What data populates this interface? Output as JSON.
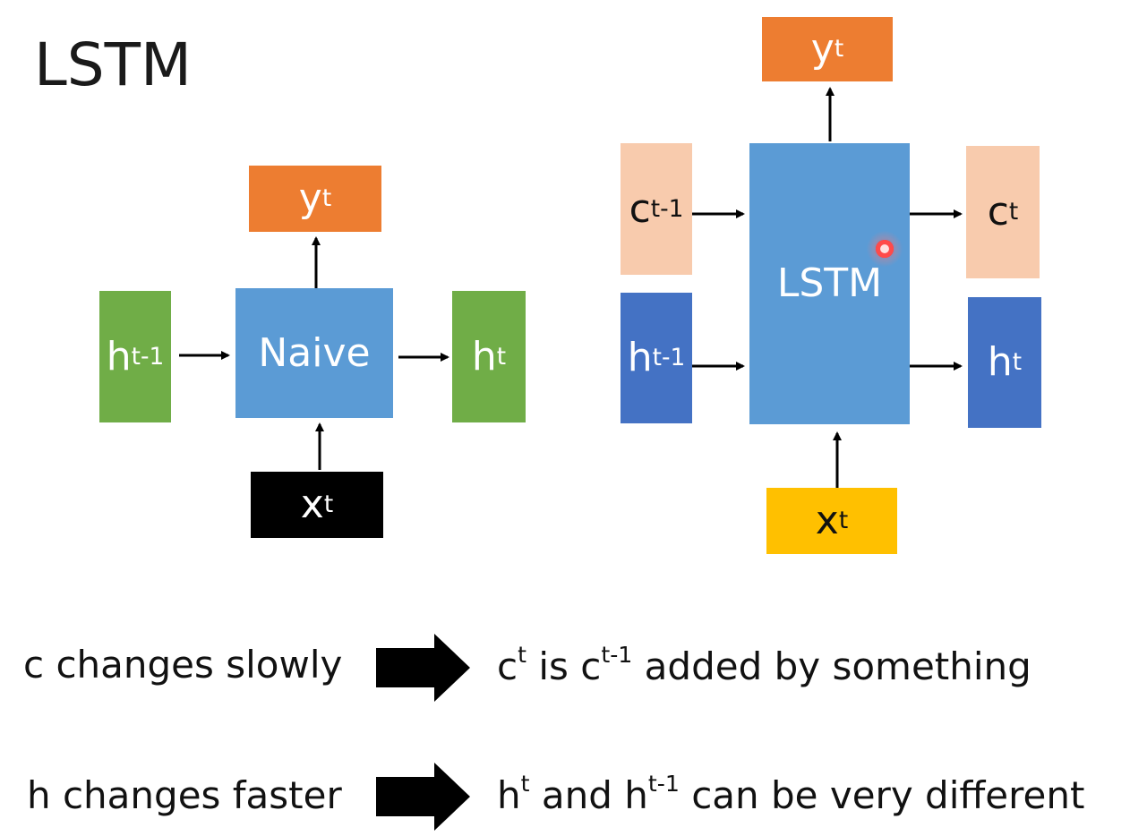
{
  "title": "LSTM",
  "naive": {
    "y_base": "y",
    "y_sup": "t",
    "h_prev_base": "h",
    "h_prev_sup": "t-1",
    "cell": "Naive",
    "h_next_base": "h",
    "h_next_sup": "t",
    "x_base": "x",
    "x_sup": "t"
  },
  "lstm": {
    "y_base": "y",
    "y_sup": "t",
    "c_prev_base": "c",
    "c_prev_sup": "t-1",
    "h_prev_base": "h",
    "h_prev_sup": "t-1",
    "cell": "LSTM",
    "c_next_base": "c",
    "c_next_sup": "t",
    "h_next_base": "h",
    "h_next_sup": "t",
    "x_base": "x",
    "x_sup": "t"
  },
  "statements": {
    "c_left": "c changes slowly",
    "c_right": {
      "p1": "c",
      "s1": "t",
      "p2": " is c",
      "s2": "t-1",
      "p3": " added by something"
    },
    "h_left": "h changes faster",
    "h_right": {
      "p1": "h",
      "s1": "t",
      "p2": " and h",
      "s2": "t-1",
      "p3": " can be very different"
    }
  },
  "colors": {
    "orange": "#ED7D31",
    "green": "#70AD47",
    "blue_cell": "#5B9BD5",
    "dark_blue": "#4472C4",
    "peach": "#F8CBAD",
    "yellow": "#FFC000",
    "black": "#000000"
  }
}
